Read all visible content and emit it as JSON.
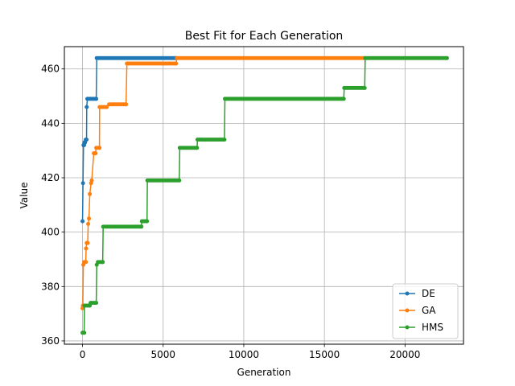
{
  "chart_data": {
    "type": "line",
    "title": "Best Fit for Each Generation",
    "xlabel": "Generation",
    "ylabel": "Value",
    "xlim": [
      -1126,
      23626
    ],
    "ylim": [
      358.8,
      468.2
    ],
    "xticks": [
      0,
      5000,
      10000,
      15000,
      20000
    ],
    "xtick_labels": [
      "0",
      "5000",
      "10000",
      "15000",
      "20000"
    ],
    "yticks": [
      360,
      380,
      400,
      420,
      440,
      460
    ],
    "ytick_labels": [
      "360",
      "380",
      "400",
      "420",
      "440",
      "460"
    ],
    "grid": true,
    "legend_position": "lower-right",
    "series": [
      {
        "name": "DE",
        "color": "#1f77b4",
        "points": [
          [
            0,
            404
          ],
          [
            30,
            418
          ],
          [
            60,
            432
          ],
          [
            100,
            432
          ],
          [
            120,
            433
          ],
          [
            160,
            433
          ],
          [
            200,
            434
          ],
          [
            250,
            434
          ],
          [
            260,
            446
          ],
          [
            300,
            449
          ],
          [
            850,
            449
          ],
          [
            880,
            464
          ],
          [
            5800,
            464
          ]
        ]
      },
      {
        "name": "GA",
        "color": "#ff7f0e",
        "points": [
          [
            0,
            372
          ],
          [
            20,
            373
          ],
          [
            50,
            388
          ],
          [
            100,
            389
          ],
          [
            200,
            389
          ],
          [
            220,
            394
          ],
          [
            260,
            396
          ],
          [
            320,
            396
          ],
          [
            350,
            403
          ],
          [
            400,
            405
          ],
          [
            450,
            414
          ],
          [
            530,
            418
          ],
          [
            570,
            419
          ],
          [
            700,
            429
          ],
          [
            800,
            429
          ],
          [
            850,
            431
          ],
          [
            1050,
            431
          ],
          [
            1060,
            446
          ],
          [
            1500,
            446
          ],
          [
            1650,
            447
          ],
          [
            2700,
            447
          ],
          [
            2750,
            462
          ],
          [
            5800,
            462
          ],
          [
            5850,
            464
          ],
          [
            17500,
            464
          ]
        ]
      },
      {
        "name": "HMS",
        "color": "#2ca02c",
        "points": [
          [
            0,
            363
          ],
          [
            100,
            363
          ],
          [
            120,
            373
          ],
          [
            450,
            373
          ],
          [
            500,
            374
          ],
          [
            850,
            374
          ],
          [
            880,
            388
          ],
          [
            950,
            389
          ],
          [
            1250,
            389
          ],
          [
            1280,
            402
          ],
          [
            3650,
            402
          ],
          [
            3680,
            404
          ],
          [
            4000,
            404
          ],
          [
            4020,
            419
          ],
          [
            6000,
            419
          ],
          [
            6030,
            431
          ],
          [
            7100,
            431
          ],
          [
            7130,
            434
          ],
          [
            8800,
            434
          ],
          [
            8830,
            449
          ],
          [
            16200,
            449
          ],
          [
            16230,
            453
          ],
          [
            17500,
            453
          ],
          [
            17530,
            464
          ],
          [
            22600,
            464
          ]
        ]
      }
    ]
  }
}
